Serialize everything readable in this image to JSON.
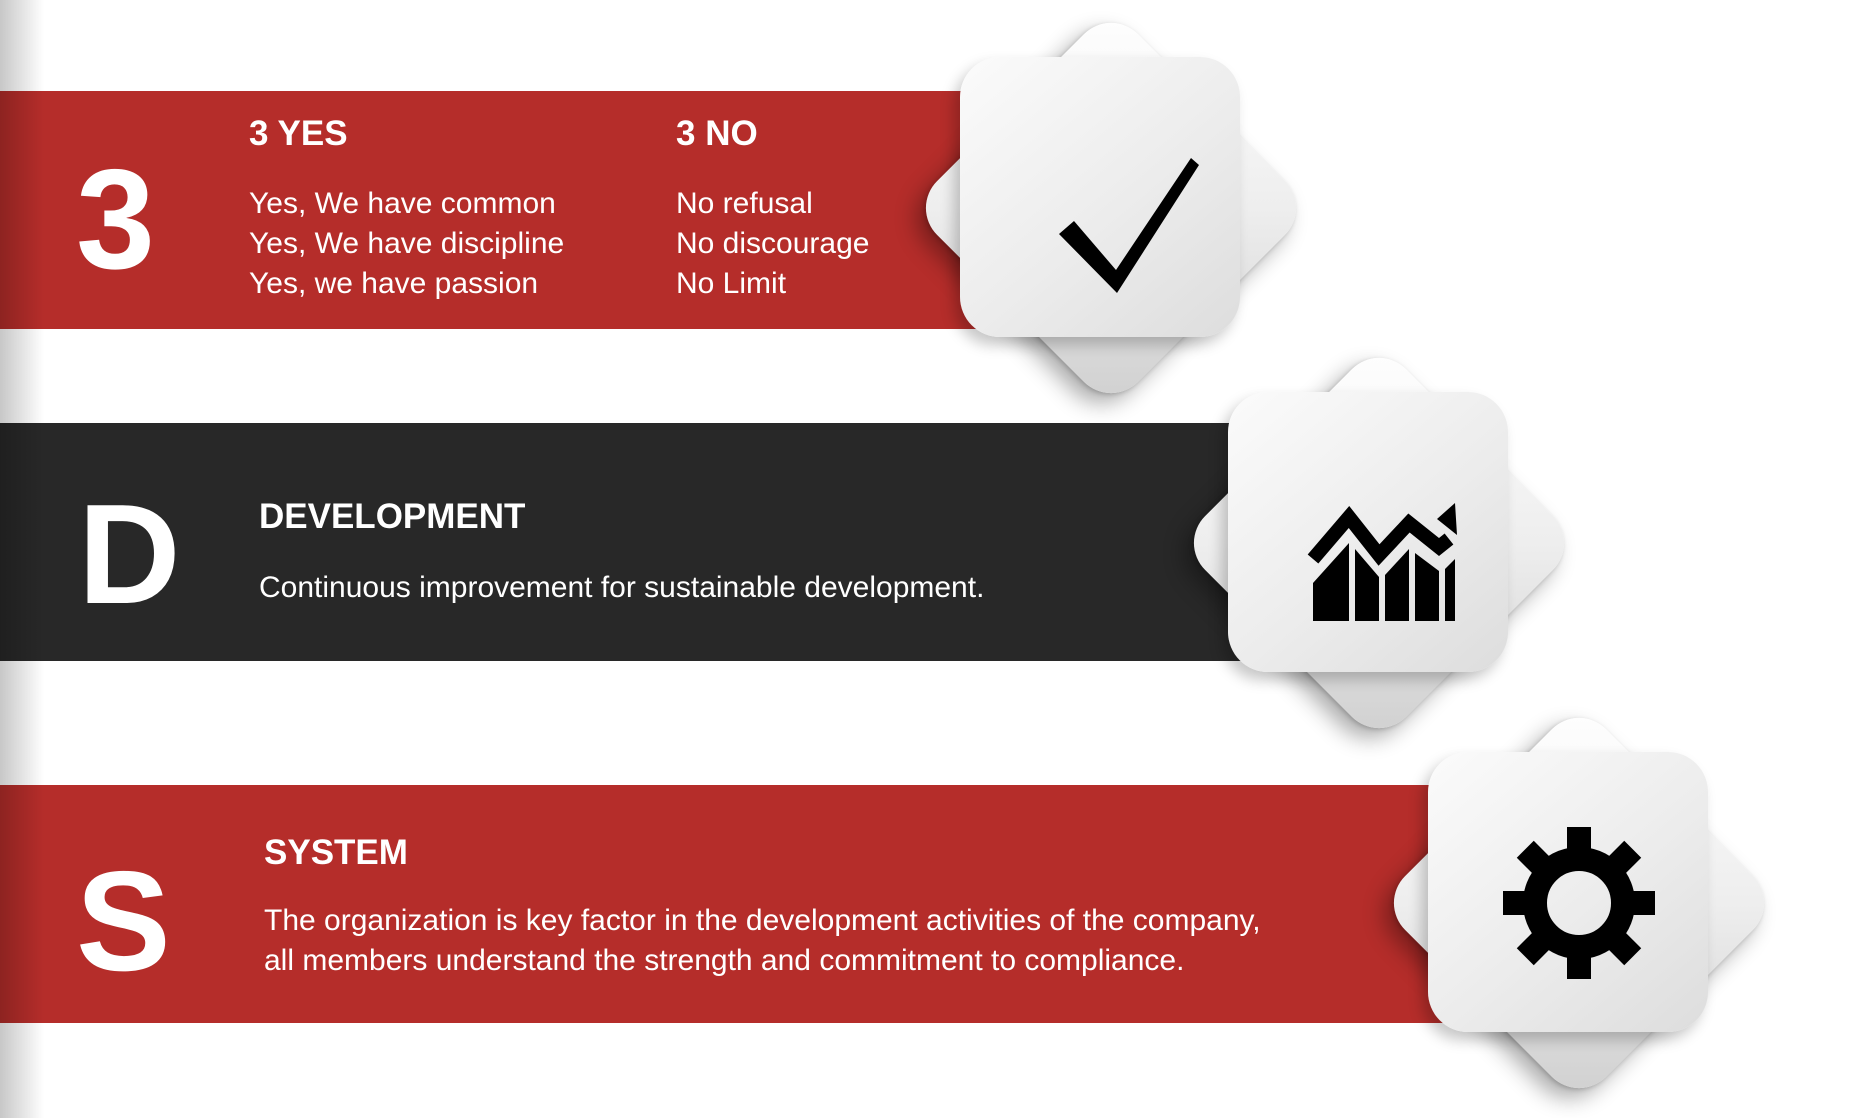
{
  "colors": {
    "red_band": "#b52d2a",
    "dark_band": "#282828",
    "text": "#ffffff",
    "icon": "#000000"
  },
  "rows": [
    {
      "letter": "3",
      "columns": [
        {
          "heading": "3 YES",
          "lines": [
            "Yes, We have common",
            "Yes, We have  discipline",
            "Yes, we have passion"
          ]
        },
        {
          "heading": "3 NO",
          "lines": [
            "No refusal",
            "No discourage",
            "No Limit"
          ]
        }
      ],
      "icon": "checkmark-icon"
    },
    {
      "letter": "D",
      "heading": "DEVELOPMENT",
      "description": "Continuous improvement for sustainable development.",
      "icon": "growth-chart-icon"
    },
    {
      "letter": "S",
      "heading": "SYSTEM",
      "lines": [
        "The organization is key factor in the development activities of the company,",
        "all members understand the strength and commitment to compliance."
      ],
      "icon": "gear-icon"
    }
  ]
}
